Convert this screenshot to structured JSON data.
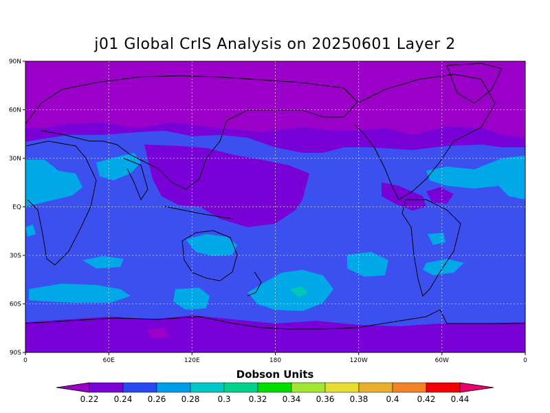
{
  "title": "j01 Global CrIS Analysis on 20250601 Layer 2",
  "axes": {
    "y_ticks": [
      "90N",
      "60N",
      "30N",
      "EQ",
      "30S",
      "60S",
      "90S"
    ],
    "x_ticks": [
      "0",
      "60E",
      "120E",
      "180",
      "120W",
      "60W",
      "0"
    ]
  },
  "colorbar": {
    "label": "Dobson Units",
    "ticks": [
      "0.22",
      "0.24",
      "0.26",
      "0.28",
      "0.3",
      "0.32",
      "0.34",
      "0.36",
      "0.38",
      "0.4",
      "0.42",
      "0.44"
    ],
    "low_color": "#9b00c8",
    "high_color": "#e8006e",
    "colors": [
      "#7a00d8",
      "#2848f0",
      "#009ee8",
      "#00c8c8",
      "#00d28c",
      "#00dc00",
      "#a0e632",
      "#e6dc32",
      "#e6af2d",
      "#f08228",
      "#f00000"
    ]
  },
  "map_colors": {
    "purple": "#9b00c8",
    "violet": "#7a00d8",
    "blue": "#3c50f0",
    "cyan": "#00a8e8",
    "teal": "#00c8b4"
  }
}
